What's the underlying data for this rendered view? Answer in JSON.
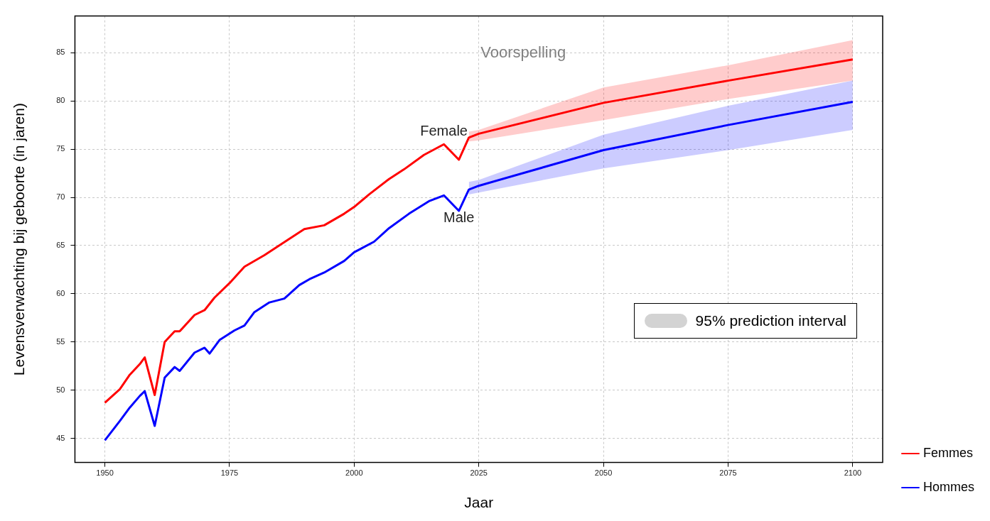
{
  "chart_data": {
    "type": "line",
    "xlabel": "Jaar",
    "ylabel": "Levensverwachting bij geboorte (in jaren)",
    "xlim": [
      1944,
      2106
    ],
    "ylim": [
      42.5,
      88.8
    ],
    "xticks": [
      1950,
      1975,
      2000,
      2025,
      2050,
      2075,
      2100
    ],
    "yticks": [
      45,
      50,
      55,
      60,
      65,
      70,
      75,
      80,
      85
    ],
    "grid": true,
    "legend": "bottom right",
    "line_style": "solid",
    "marker": "none",
    "annotations": [
      "Voorspelling",
      {
        "text": "Female",
        "x": 2018,
        "y": 75.5
      },
      {
        "text": "Male",
        "x": 2021,
        "y": 68.6
      },
      "95% prediction interval"
    ],
    "series": [
      {
        "name": "Femmes",
        "color": "#ff0000",
        "x": [
          1950,
          1953,
          1955,
          1957,
          1958,
          1960,
          1962,
          1964,
          1965,
          1968,
          1970,
          1972,
          1975,
          1978,
          1982,
          1987,
          1990,
          1994,
          1998,
          2000,
          2003,
          2007,
          2010,
          2014,
          2018,
          2021,
          2023,
          2025,
          2050,
          2075,
          2100
        ],
        "values": [
          48.7,
          50.1,
          51.6,
          52.7,
          53.4,
          49.5,
          55.0,
          56.1,
          56.1,
          57.8,
          58.3,
          59.6,
          61.1,
          62.8,
          64.0,
          65.7,
          66.7,
          67.1,
          68.3,
          69.0,
          70.3,
          71.9,
          72.9,
          74.4,
          75.5,
          73.9,
          76.2,
          76.6,
          79.8,
          82.1,
          84.3
        ],
        "lower": [
          null,
          null,
          null,
          null,
          null,
          null,
          null,
          null,
          null,
          null,
          null,
          null,
          null,
          null,
          null,
          null,
          null,
          null,
          null,
          null,
          null,
          null,
          null,
          null,
          null,
          null,
          75.8,
          75.9,
          78.0,
          80.2,
          82.1
        ],
        "upper": [
          null,
          null,
          null,
          null,
          null,
          null,
          null,
          null,
          null,
          null,
          null,
          null,
          null,
          null,
          null,
          null,
          null,
          null,
          null,
          null,
          null,
          null,
          null,
          null,
          null,
          null,
          76.8,
          77.0,
          81.4,
          83.7,
          86.3
        ]
      },
      {
        "name": "Hommes",
        "color": "#0000ff",
        "x": [
          1950,
          1953,
          1955,
          1957,
          1958,
          1960,
          1962,
          1964,
          1965,
          1968,
          1970,
          1971,
          1973,
          1976,
          1978,
          1980,
          1983,
          1986,
          1989,
          1991,
          1994,
          1998,
          2000,
          2004,
          2007,
          2011,
          2015,
          2018,
          2021,
          2023,
          2025,
          2050,
          2075,
          2100
        ],
        "values": [
          44.8,
          46.8,
          48.2,
          49.4,
          49.9,
          46.3,
          51.3,
          52.4,
          52.0,
          53.9,
          54.4,
          53.8,
          55.2,
          56.2,
          56.7,
          58.1,
          59.1,
          59.5,
          60.9,
          61.5,
          62.2,
          63.4,
          64.3,
          65.4,
          66.8,
          68.3,
          69.6,
          70.2,
          68.6,
          70.8,
          71.2,
          74.9,
          77.5,
          79.9
        ],
        "lower": [
          null,
          null,
          null,
          null,
          null,
          null,
          null,
          null,
          null,
          null,
          null,
          null,
          null,
          null,
          null,
          null,
          null,
          null,
          null,
          null,
          null,
          null,
          null,
          null,
          null,
          null,
          null,
          null,
          null,
          70.3,
          70.5,
          73.0,
          74.9,
          77.0
        ],
        "upper": [
          null,
          null,
          null,
          null,
          null,
          null,
          null,
          null,
          null,
          null,
          null,
          null,
          null,
          null,
          null,
          null,
          null,
          null,
          null,
          null,
          null,
          null,
          null,
          null,
          null,
          null,
          null,
          null,
          null,
          71.6,
          71.8,
          76.5,
          79.5,
          82.1
        ]
      }
    ]
  }
}
